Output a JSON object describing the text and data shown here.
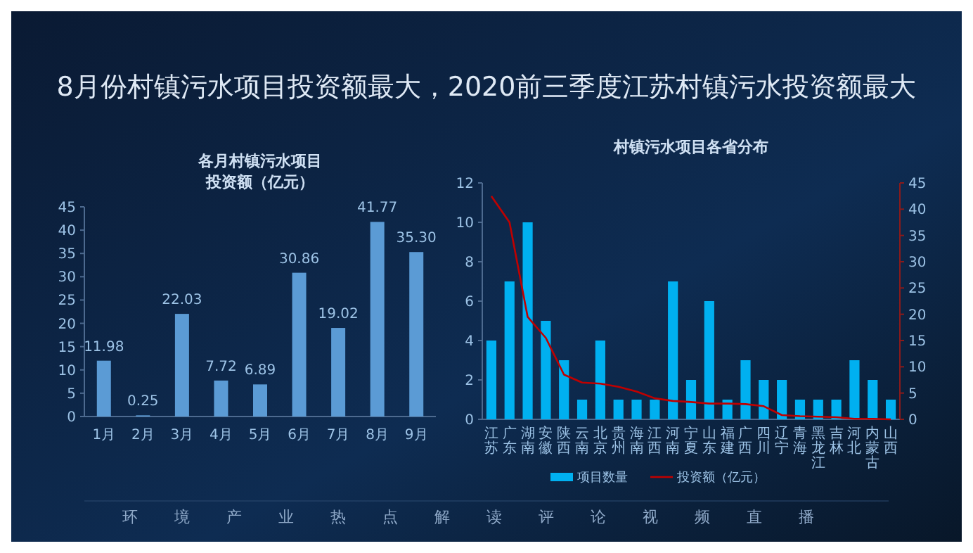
{
  "chart_data": [
    {
      "type": "other",
      "title": "8月份村镇污水项目投资额最大，2020前三季度江苏村镇污水投资额最大",
      "annotations": [
        "环境产业热点解读评论视频直播"
      ]
    },
    {
      "type": "bar",
      "title": "各月村镇污水项目",
      "subtitle": "投资额（亿元）",
      "categories": [
        "1月",
        "2月",
        "3月",
        "4月",
        "5月",
        "6月",
        "7月",
        "8月",
        "9月"
      ],
      "values": [
        11.98,
        0.25,
        22.03,
        7.72,
        6.89,
        30.86,
        19.02,
        41.77,
        35.3
      ],
      "value_labels": [
        "11.98",
        "0.25",
        "22.03",
        "7.72",
        "6.89",
        "30.86",
        "19.02",
        "41.77",
        "35.30"
      ],
      "color": "#5b9bd5",
      "ylim": [
        0,
        45
      ],
      "yticks": [
        0,
        5,
        10,
        15,
        20,
        25,
        30,
        35,
        40,
        45
      ]
    },
    {
      "type": "bar",
      "title": "村镇污水项目各省分布",
      "categories": [
        "江苏",
        "广东",
        "湖南",
        "安徽",
        "陕西",
        "云南",
        "北京",
        "贵州",
        "海南",
        "江西",
        "河南",
        "宁夏",
        "山东",
        "福建",
        "广西",
        "四川",
        "辽宁",
        "青海",
        "黑龙江",
        "吉林",
        "河北",
        "内蒙古",
        "山西"
      ],
      "series": [
        {
          "name": "项目数量",
          "color": "#00b0f0",
          "values": [
            4,
            7,
            10,
            5,
            3,
            1,
            4,
            1,
            1,
            1,
            7,
            2,
            6,
            1,
            3,
            2,
            2,
            1,
            1,
            1,
            3,
            2,
            1
          ]
        },
        {
          "name": "投资额（亿元）",
          "type": "line",
          "axis": "y2",
          "color": "#c00000",
          "values": [
            42.5,
            37.5,
            19.5,
            15.5,
            8.5,
            7,
            6.8,
            6.2,
            5.3,
            4,
            3.5,
            3.3,
            3,
            3,
            2.9,
            2.5,
            0.8,
            0.6,
            0.5,
            0.4,
            0.1,
            0.1,
            0
          ]
        }
      ],
      "ylim": [
        0,
        12
      ],
      "yticks": [
        0,
        2,
        4,
        6,
        8,
        10,
        12
      ],
      "y2lim": [
        0,
        45
      ],
      "y2ticks": [
        0,
        5,
        10,
        15,
        20,
        25,
        30,
        35,
        40,
        45
      ],
      "legend": "bottom",
      "marker": "none"
    }
  ]
}
